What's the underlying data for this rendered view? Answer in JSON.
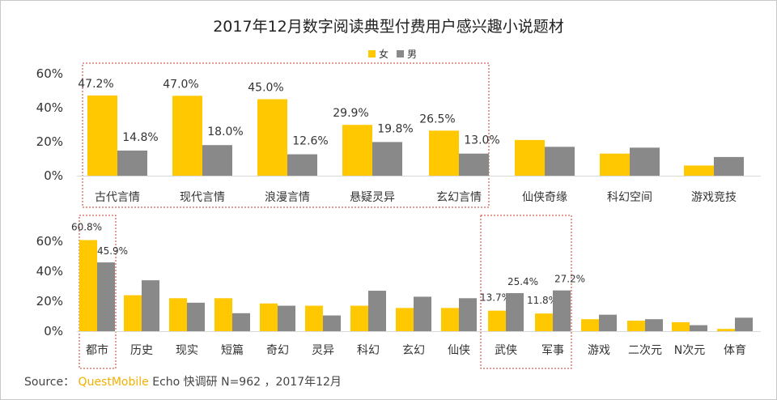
{
  "title": "2017年12月数字阅读典型付费用户感兴趣小说题材",
  "legend": [
    {
      "name": "女",
      "color": "#ffc800"
    },
    {
      "name": "男",
      "color": "#898989"
    }
  ],
  "source": {
    "prefix": "Source：",
    "brand": "QuestMobile",
    "rest": "Echo 快调研  N=962  ，2017年12月"
  },
  "chart_data": [
    {
      "type": "bar",
      "categories": [
        "古代言情",
        "现代言情",
        "浪漫言情",
        "悬疑灵异",
        "玄幻言情",
        "仙侠奇缘",
        "科幻空间",
        "游戏竞技"
      ],
      "series": [
        {
          "name": "女",
          "values": [
            47.2,
            47.0,
            45.0,
            29.9,
            26.5,
            21.0,
            13.0,
            6.0
          ]
        },
        {
          "name": "男",
          "values": [
            14.8,
            18.0,
            12.6,
            19.8,
            13.0,
            17.0,
            16.5,
            11.0
          ]
        }
      ],
      "data_labels": [
        [
          "47.2%",
          "47.0%",
          "45.0%",
          "29.9%",
          "26.5%",
          "",
          "",
          ""
        ],
        [
          "14.8%",
          "18.0%",
          "12.6%",
          "19.8%",
          "13.0%",
          "",
          "",
          ""
        ]
      ],
      "yticks": [
        "0%",
        "20%",
        "40%",
        "60%"
      ],
      "ylim": [
        0,
        60
      ],
      "highlighted": [
        "古代言情",
        "现代言情",
        "浪漫言情",
        "悬疑灵异",
        "玄幻言情"
      ]
    },
    {
      "type": "bar",
      "categories": [
        "都市",
        "历史",
        "现实",
        "短篇",
        "奇幻",
        "灵异",
        "科幻",
        "玄幻",
        "仙侠",
        "武侠",
        "军事",
        "游戏",
        "二次元",
        "N次元",
        "体育"
      ],
      "series": [
        {
          "name": "女",
          "values": [
            60.8,
            24.0,
            22.0,
            22.0,
            18.5,
            17.0,
            17.0,
            15.5,
            15.5,
            13.7,
            11.8,
            8.0,
            7.0,
            6.0,
            1.5
          ]
        },
        {
          "name": "男",
          "values": [
            45.9,
            34.0,
            19.0,
            12.0,
            17.0,
            10.5,
            27.0,
            23.0,
            22.0,
            25.4,
            27.2,
            11.0,
            8.0,
            4.0,
            9.0
          ]
        }
      ],
      "data_labels": [
        [
          "60.8%",
          "",
          "",
          "",
          "",
          "",
          "",
          "",
          "",
          "13.7%",
          "11.8%",
          "",
          "",
          "",
          ""
        ],
        [
          "45.9%",
          "",
          "",
          "",
          "",
          "",
          "",
          "",
          "",
          "25.4%",
          "27.2%",
          "",
          "",
          "",
          ""
        ]
      ],
      "yticks": [
        "0%",
        "20%",
        "40%",
        "60%"
      ],
      "ylim": [
        0,
        60
      ],
      "highlighted": [
        "都市",
        "武侠",
        "军事"
      ]
    }
  ]
}
